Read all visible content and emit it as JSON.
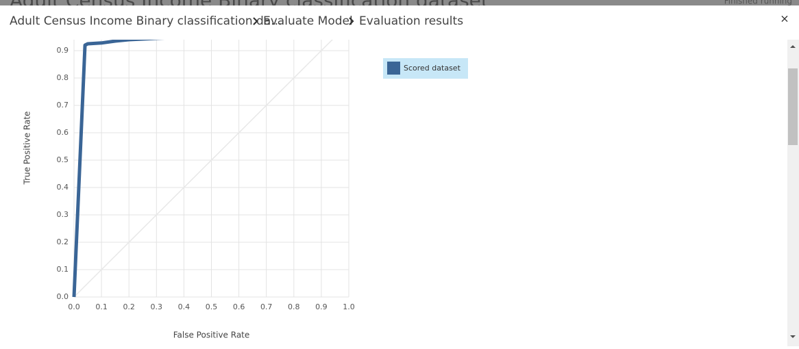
{
  "background": {
    "title": "Adult Census Income Binary classification dataset",
    "status": "Finished running"
  },
  "breadcrumb": [
    "Adult Census Income Binary classification da...",
    "Evaluate Model",
    "Evaluation results"
  ],
  "close": "×",
  "chart_data": {
    "type": "line",
    "x_label": "False Positive Rate",
    "y_label": "True Positive Rate",
    "xlim": [
      0,
      1
    ],
    "ylim": [
      0,
      1
    ],
    "xticks": [
      {
        "value": 0,
        "label": "0.0"
      },
      0.1,
      0.2,
      0.3,
      0.4,
      0.5,
      0.6,
      0.7,
      0.8,
      0.9,
      {
        "value": 1,
        "label": "1.0"
      }
    ],
    "yticks": [
      {
        "value": 0,
        "label": "0.0"
      },
      0.1,
      0.2,
      0.3,
      0.4,
      0.5,
      0.6,
      0.7,
      0.8,
      0.9
    ],
    "grid": true,
    "legend": "right",
    "series": [
      {
        "name": "Scored dataset",
        "color": "#3a6596",
        "x": [
          0,
          0.04,
          0.05,
          0.1,
          0.15,
          0.2,
          0.3,
          0.42
        ],
        "values": [
          0,
          0.92,
          0.925,
          0.928,
          0.935,
          0.94,
          0.945,
          0.95
        ]
      }
    ]
  }
}
